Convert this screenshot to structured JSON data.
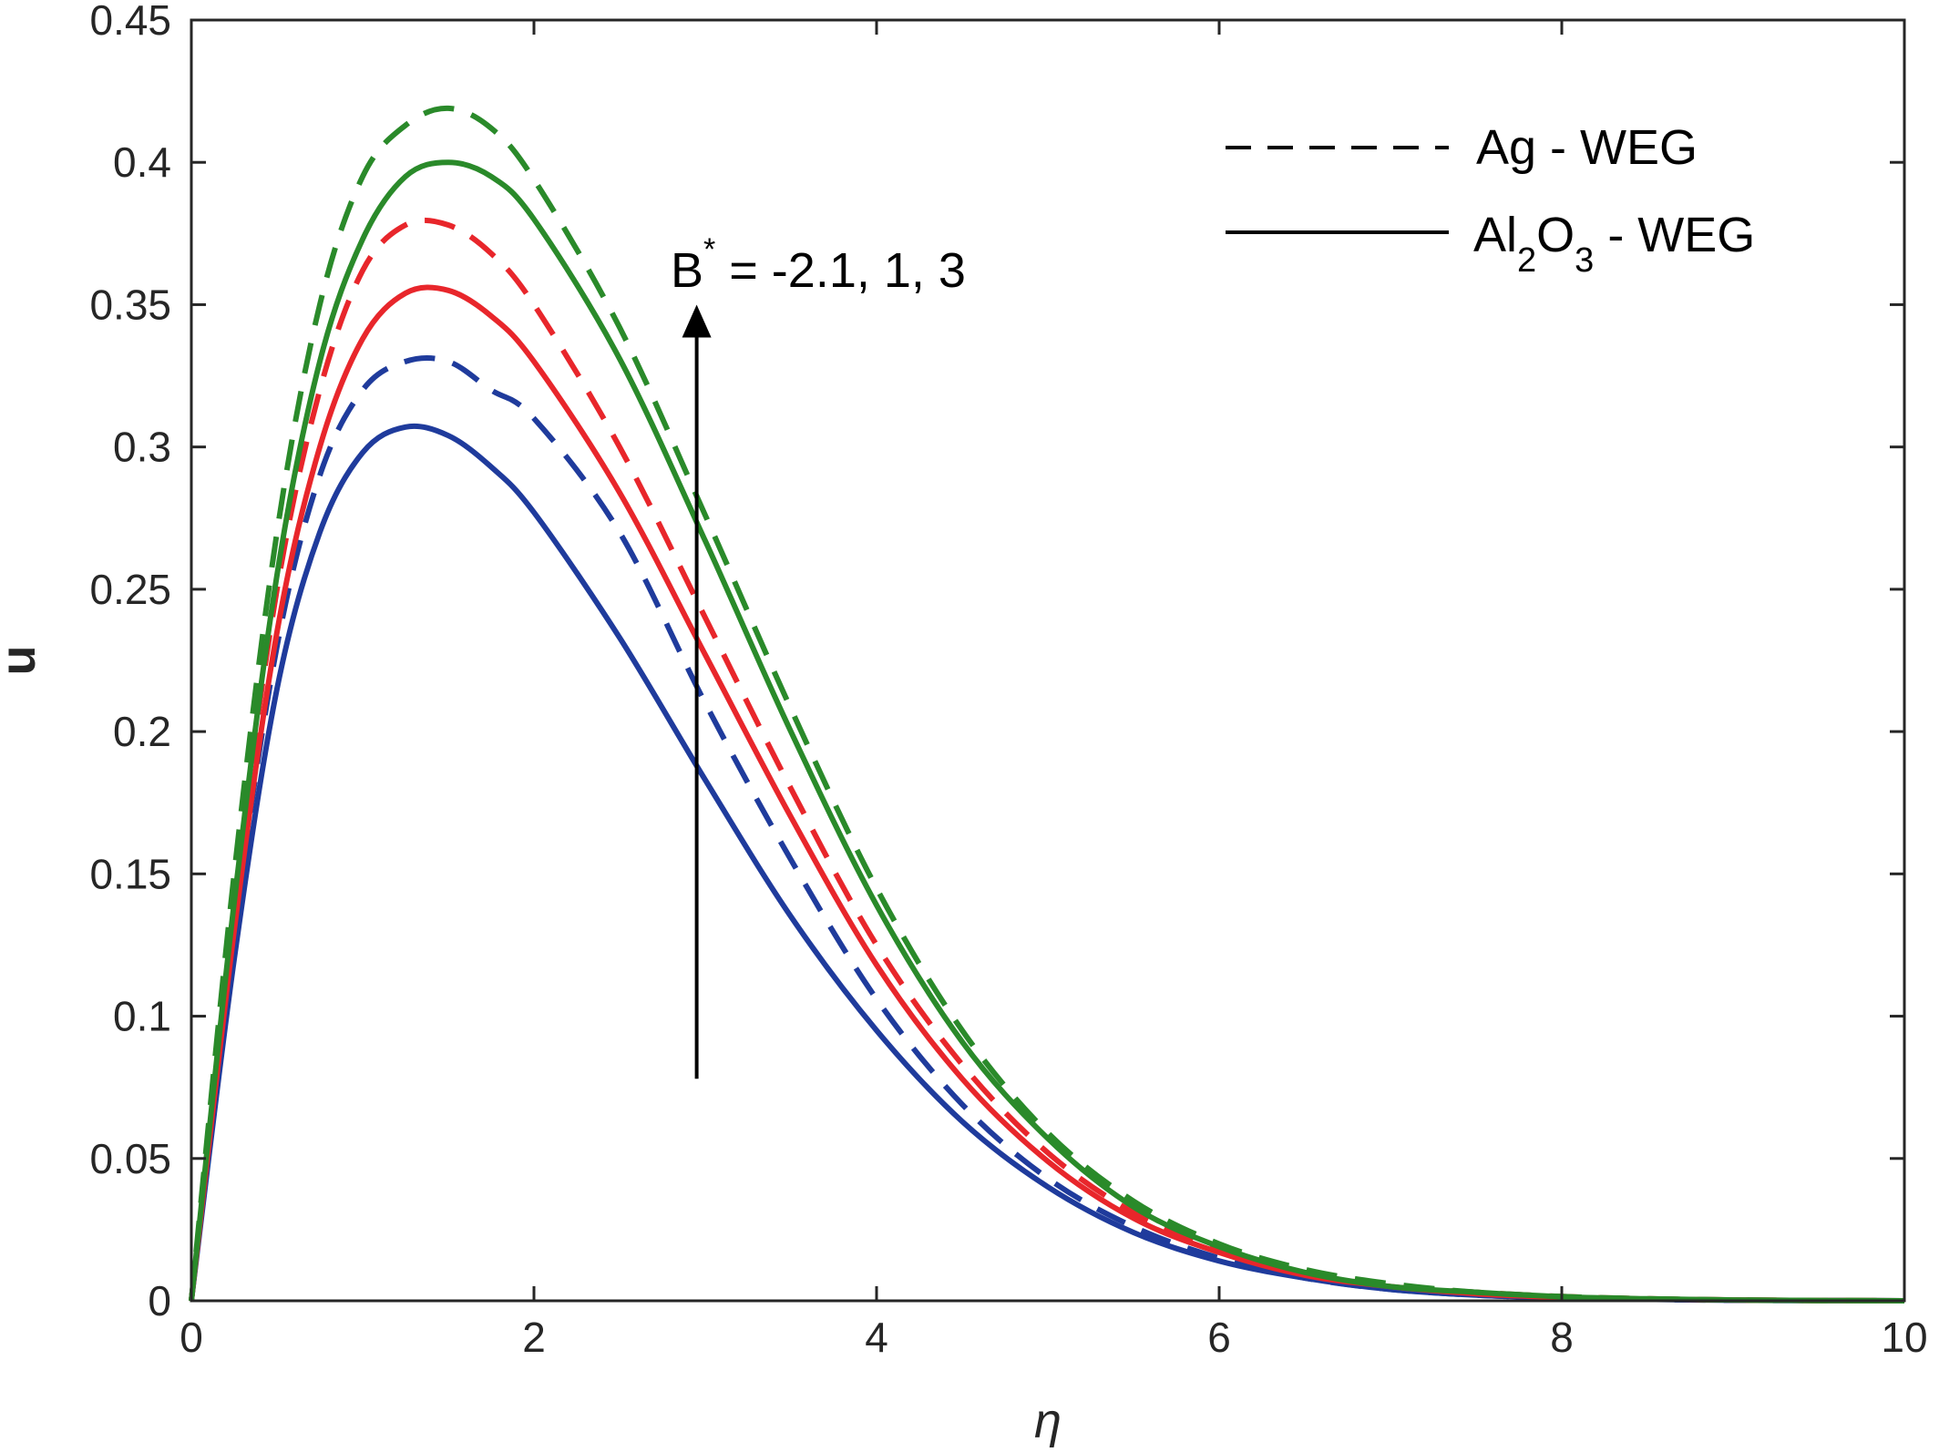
{
  "chart_data": {
    "type": "line",
    "xlabel": "η",
    "ylabel": "u",
    "xlim": [
      0,
      10
    ],
    "ylim": [
      0,
      0.45
    ],
    "xticks": [
      "0",
      "2",
      "4",
      "6",
      "8",
      "10"
    ],
    "yticks": [
      "0",
      "0.05",
      "0.1",
      "0.15",
      "0.2",
      "0.25",
      "0.3",
      "0.35",
      "0.4",
      "0.45"
    ],
    "grid": false,
    "legend": {
      "placement": "top-right",
      "entries": [
        {
          "style": "dashed",
          "label": "Ag - WEG"
        },
        {
          "style": "solid",
          "label": "Al2O3 - WEG",
          "parts": [
            [
              "Al",
              ""
            ],
            [
              "2",
              "sub"
            ],
            [
              "O",
              ""
            ],
            [
              "3",
              "sub"
            ],
            [
              " - WEG",
              ""
            ]
          ]
        }
      ]
    },
    "annotation": {
      "text_base": "B",
      "text_sup": "*",
      "text_rest": " = -2.1, 1, 3",
      "arrow_x": 2.95,
      "arrow_from": 0.078,
      "arrow_to": 0.35
    },
    "x": [
      0,
      0.25,
      0.5,
      0.75,
      1.0,
      1.25,
      1.5,
      1.75,
      2.0,
      2.5,
      3.0,
      3.5,
      4.0,
      4.5,
      5.0,
      5.5,
      6.0,
      6.5,
      7.0,
      7.5,
      8.0,
      8.5,
      9.0,
      9.5,
      10.0
    ],
    "series": [
      {
        "fluid": "Ag - WEG",
        "style": "dashed",
        "color": "#1f3b9c",
        "values": [
          0,
          0.13,
          0.23,
          0.29,
          0.32,
          0.33,
          0.33,
          0.32,
          0.31,
          0.27,
          0.21,
          0.155,
          0.106,
          0.069,
          0.043,
          0.026,
          0.015,
          0.008,
          0.004,
          0.002,
          0.001,
          0.0005,
          0.0002,
          0.0001,
          0
        ]
      },
      {
        "fluid": "Al2O3 - WEG",
        "style": "solid",
        "color": "#1f3b9c",
        "values": [
          0,
          0.12,
          0.215,
          0.27,
          0.298,
          0.307,
          0.304,
          0.293,
          0.277,
          0.233,
          0.183,
          0.135,
          0.095,
          0.063,
          0.04,
          0.024,
          0.014,
          0.008,
          0.004,
          0.002,
          0.001,
          0.0005,
          0.0002,
          0.0001,
          0
        ]
      },
      {
        "fluid": "Ag - WEG",
        "style": "dashed",
        "color": "#e8262b",
        "values": [
          0,
          0.14,
          0.25,
          0.32,
          0.362,
          0.378,
          0.378,
          0.368,
          0.35,
          0.3,
          0.24,
          0.18,
          0.125,
          0.083,
          0.052,
          0.031,
          0.018,
          0.01,
          0.005,
          0.003,
          0.0015,
          0.0007,
          0.0003,
          0.0001,
          0
        ]
      },
      {
        "fluid": "Al2O3 - WEG",
        "style": "solid",
        "color": "#e8262b",
        "values": [
          0,
          0.13,
          0.235,
          0.3,
          0.338,
          0.354,
          0.355,
          0.346,
          0.33,
          0.284,
          0.227,
          0.17,
          0.118,
          0.078,
          0.049,
          0.029,
          0.017,
          0.009,
          0.005,
          0.0025,
          0.0012,
          0.0006,
          0.0003,
          0.0001,
          0
        ]
      },
      {
        "fluid": "Ag - WEG",
        "style": "dashed",
        "color": "#2a8a2a",
        "values": [
          0,
          0.15,
          0.27,
          0.35,
          0.395,
          0.413,
          0.419,
          0.412,
          0.394,
          0.342,
          0.276,
          0.208,
          0.145,
          0.095,
          0.059,
          0.035,
          0.02,
          0.011,
          0.006,
          0.003,
          0.0015,
          0.0007,
          0.0003,
          0.0001,
          0
        ]
      },
      {
        "fluid": "Al2O3 - WEG",
        "style": "solid",
        "color": "#2a8a2a",
        "values": [
          0,
          0.14,
          0.255,
          0.33,
          0.373,
          0.395,
          0.4,
          0.395,
          0.38,
          0.331,
          0.267,
          0.2,
          0.139,
          0.091,
          0.057,
          0.033,
          0.019,
          0.01,
          0.005,
          0.003,
          0.0014,
          0.0007,
          0.0003,
          0.0001,
          0
        ]
      }
    ]
  }
}
